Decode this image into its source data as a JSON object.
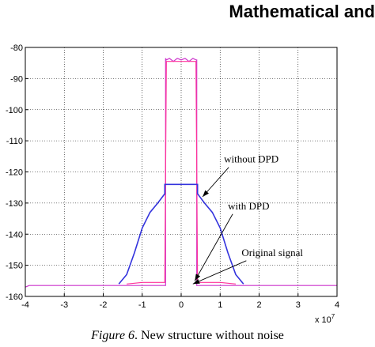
{
  "header": {
    "title": "Mathematical and"
  },
  "caption": {
    "label": "Figure 6",
    "text": ". New structure without noise"
  },
  "chart_data": {
    "type": "line",
    "title": "",
    "xlabel": "",
    "ylabel": "",
    "x_exponent_label": "x 10",
    "x_exponent_power": "7",
    "xlim": [
      -4,
      4
    ],
    "ylim": [
      -160,
      -80
    ],
    "xticks": [
      -4,
      -3,
      -2,
      -1,
      0,
      1,
      2,
      3,
      4
    ],
    "yticks": [
      -80,
      -90,
      -100,
      -110,
      -120,
      -130,
      -140,
      -150,
      -160
    ],
    "grid": true,
    "series": [
      {
        "color": "#cc33cc",
        "x": [
          -4,
          -3.9,
          -2.0,
          -1.0,
          -0.6,
          -0.45,
          -0.45,
          -0.4,
          -0.4,
          -0.38,
          -0.3,
          -0.2,
          -0.1,
          0.0,
          0.1,
          0.2,
          0.3,
          0.38,
          0.4,
          0.4,
          0.45,
          0.45,
          0.6,
          1.0,
          2.0,
          3.0,
          4.0
        ],
        "y": [
          -157,
          -156.5,
          -156.5,
          -156.5,
          -156.5,
          -156.5,
          -156.5,
          -156.5,
          -83.5,
          -84,
          -83.5,
          -84.5,
          -83.5,
          -84,
          -83.5,
          -84.5,
          -83.5,
          -84,
          -84,
          -156.5,
          -156.5,
          -156.5,
          -156.5,
          -156.5,
          -156.5,
          -156.5,
          -156.5
        ]
      },
      {
        "color": "#ff3399",
        "x": [
          -1.4,
          -1.0,
          -0.6,
          -0.42,
          -0.42,
          -0.38,
          0.0,
          0.38,
          0.42,
          0.42,
          0.6,
          1.0,
          1.4
        ],
        "y": [
          -156,
          -155.5,
          -155.5,
          -155.5,
          -155.5,
          -84.5,
          -84.5,
          -84.5,
          -155.5,
          -155.5,
          -155.5,
          -155.5,
          -156
        ]
      },
      {
        "color": "#3333dd",
        "x": [
          -1.6,
          -1.4,
          -1.2,
          -1.0,
          -0.8,
          -0.6,
          -0.42,
          -0.42,
          0.42,
          0.42,
          0.6,
          0.8,
          1.0,
          1.2,
          1.4,
          1.6
        ],
        "y": [
          -156,
          -153,
          -146,
          -138,
          -133,
          -130,
          -127,
          -124,
          -124,
          -127,
          -130,
          -133,
          -138,
          -146,
          -153,
          -156
        ]
      }
    ],
    "annotations": [
      {
        "text": "without DPD",
        "x": 1.1,
        "y": -117,
        "arrow_to": [
          0.55,
          -128
        ]
      },
      {
        "text": "with DPD",
        "x": 1.2,
        "y": -132,
        "arrow_to": [
          0.35,
          -155
        ]
      },
      {
        "text": "Original signal",
        "x": 1.55,
        "y": -147,
        "arrow_to": [
          0.3,
          -156
        ]
      }
    ]
  }
}
